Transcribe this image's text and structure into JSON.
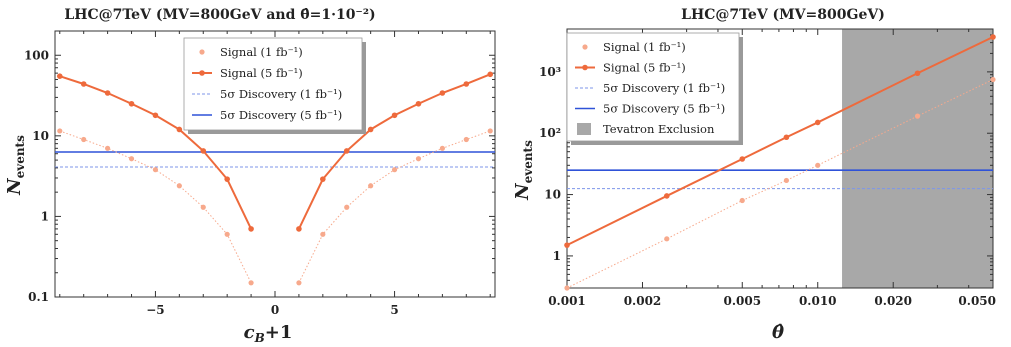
{
  "colors": {
    "signal": "#ee6a3c",
    "signal_light": "#f7a98c",
    "discovery": "#2f52d8",
    "discovery_light": "#7d95ea",
    "exclusion": "#a8a8a8"
  },
  "chart_data": [
    {
      "type": "line",
      "title": "LHC@7TeV (MV=800GeV and θ̂=1·10⁻²)",
      "xlabel": "c_B+1",
      "ylabel": "N_events",
      "xlim": [
        -9.2,
        9.2
      ],
      "ylim": [
        0.1,
        200
      ],
      "yscale": "log",
      "xticks": [
        -5,
        0,
        5
      ],
      "xtick_labels": [
        "−5",
        "0",
        "5"
      ],
      "yticks": [
        0.1,
        1,
        10,
        100
      ],
      "ytick_labels": [
        "0.1",
        "1",
        "10",
        "100"
      ],
      "legend_position": "top-center",
      "series": [
        {
          "name": "Signal (1 fb⁻¹)",
          "style": "dotted-marker",
          "x": [
            -9,
            -8,
            -7,
            -6,
            -5,
            -4,
            -3,
            -2,
            -1,
            1,
            2,
            3,
            4,
            5,
            6,
            7,
            8,
            9
          ],
          "y": [
            11.5,
            9,
            7,
            5.2,
            3.8,
            2.4,
            1.3,
            0.6,
            0.15,
            0.15,
            0.6,
            1.3,
            2.4,
            3.8,
            5.2,
            7,
            9,
            11.5
          ]
        },
        {
          "name": "Signal (5 fb⁻¹)",
          "style": "solid-marker",
          "x": [
            -9,
            -8,
            -7,
            -6,
            -5,
            -4,
            -3,
            -2,
            -1,
            1,
            2,
            3,
            4,
            5,
            6,
            7,
            8,
            9
          ],
          "y": [
            55,
            44,
            34,
            25,
            18,
            12,
            6.5,
            2.9,
            0.7,
            0.7,
            2.9,
            6.5,
            12,
            18,
            25,
            34,
            44,
            58
          ]
        },
        {
          "name": "5σ Discovery (1 fb⁻¹)",
          "style": "dashed",
          "y": 4.1
        },
        {
          "name": "5σ Discovery (5 fb⁻¹)",
          "style": "solid",
          "y": 6.3
        }
      ]
    },
    {
      "type": "line",
      "title": "LHC@7TeV (MV=800GeV)",
      "xlabel": "θ̂",
      "ylabel": "N_events",
      "xlim": [
        0.001,
        0.05
      ],
      "xscale": "log",
      "ylim": [
        0.3,
        5000
      ],
      "yscale": "log",
      "xticks": [
        0.001,
        0.002,
        0.005,
        0.01,
        0.02,
        0.05
      ],
      "xtick_labels": [
        "0.001",
        "0.002",
        "0.005",
        "0.010",
        "0.020",
        "0.050"
      ],
      "yticks": [
        1,
        10,
        100,
        1000
      ],
      "ytick_labels": [
        "1",
        "10",
        "10²",
        "10³"
      ],
      "legend_position": "top-left",
      "exclusion_region": {
        "name": "Tevatron Exclusion",
        "x_from": 0.0125,
        "x_to": 0.05
      },
      "series": [
        {
          "name": "Signal (1 fb⁻¹)",
          "style": "dotted-marker",
          "x": [
            0.001,
            0.0025,
            0.005,
            0.0075,
            0.01,
            0.025,
            0.05
          ],
          "y": [
            0.3,
            1.9,
            8,
            17,
            30,
            190,
            750
          ]
        },
        {
          "name": "Signal (5 fb⁻¹)",
          "style": "solid-marker",
          "x": [
            0.001,
            0.0025,
            0.005,
            0.0075,
            0.01,
            0.025,
            0.05
          ],
          "y": [
            1.5,
            9.5,
            38,
            86,
            150,
            950,
            3700
          ]
        },
        {
          "name": "5σ Discovery (1 fb⁻¹)",
          "style": "dashed",
          "y": 12.5
        },
        {
          "name": "5σ Discovery (5 fb⁻¹)",
          "style": "solid",
          "y": 25
        }
      ]
    }
  ]
}
